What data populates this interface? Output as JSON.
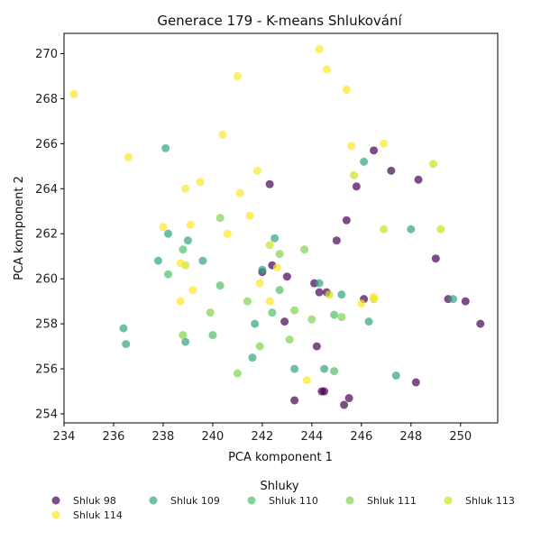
{
  "chart_data": {
    "type": "scatter",
    "title": "Generace 179 - K-means Shlukování",
    "xlabel": "PCA komponent 1",
    "ylabel": "PCA komponent 2",
    "xlim": [
      234,
      251.5
    ],
    "ylim": [
      253.6,
      270.9
    ],
    "xticks": [
      234,
      236,
      238,
      240,
      242,
      244,
      246,
      248,
      250
    ],
    "yticks": [
      254,
      256,
      258,
      260,
      262,
      264,
      266,
      268,
      270
    ],
    "grid": false,
    "legend_title": "Shluky",
    "legend_position": "bottom",
    "series": [
      {
        "name": "Shluk 98",
        "color": "#440154",
        "points": [
          [
            242.0,
            260.3
          ],
          [
            242.3,
            264.2
          ],
          [
            242.4,
            260.6
          ],
          [
            242.9,
            258.1
          ],
          [
            243.0,
            260.1
          ],
          [
            243.3,
            254.6
          ],
          [
            244.1,
            259.8
          ],
          [
            244.2,
            257.0
          ],
          [
            244.3,
            259.4
          ],
          [
            244.4,
            255.0
          ],
          [
            244.5,
            255.0
          ],
          [
            244.6,
            259.4
          ],
          [
            245.0,
            261.7
          ],
          [
            245.3,
            254.4
          ],
          [
            245.4,
            262.6
          ],
          [
            245.5,
            254.7
          ],
          [
            245.8,
            264.1
          ],
          [
            246.1,
            259.1
          ],
          [
            246.5,
            265.7
          ],
          [
            247.2,
            264.8
          ],
          [
            248.2,
            255.4
          ],
          [
            248.3,
            264.4
          ],
          [
            249.0,
            260.9
          ],
          [
            249.5,
            259.1
          ],
          [
            250.2,
            259.0
          ],
          [
            250.8,
            258.0
          ]
        ]
      },
      {
        "name": "Shluk 109",
        "color": "#31a385",
        "points": [
          [
            236.4,
            257.8
          ],
          [
            236.5,
            257.1
          ],
          [
            237.8,
            260.8
          ],
          [
            238.1,
            265.8
          ],
          [
            238.2,
            262.0
          ],
          [
            238.9,
            257.2
          ],
          [
            239.0,
            261.7
          ],
          [
            239.6,
            260.8
          ],
          [
            241.6,
            256.5
          ],
          [
            241.7,
            258.0
          ],
          [
            242.0,
            260.4
          ],
          [
            242.5,
            261.8
          ],
          [
            243.3,
            256.0
          ],
          [
            244.3,
            259.8
          ],
          [
            244.5,
            256.0
          ],
          [
            245.2,
            259.3
          ],
          [
            246.1,
            265.2
          ],
          [
            246.3,
            258.1
          ],
          [
            247.4,
            255.7
          ],
          [
            248.0,
            262.2
          ],
          [
            249.7,
            259.1
          ]
        ]
      },
      {
        "name": "Shluk 110",
        "color": "#4fc16a",
        "points": [
          [
            238.2,
            260.2
          ],
          [
            238.8,
            261.3
          ],
          [
            240.0,
            257.5
          ],
          [
            240.3,
            259.7
          ],
          [
            242.4,
            258.5
          ],
          [
            242.7,
            259.5
          ],
          [
            244.9,
            258.4
          ],
          [
            244.9,
            255.9
          ]
        ]
      },
      {
        "name": "Shluk 111",
        "color": "#7fd34e",
        "points": [
          [
            238.8,
            257.5
          ],
          [
            239.9,
            258.5
          ],
          [
            240.3,
            262.7
          ],
          [
            241.0,
            255.8
          ],
          [
            241.4,
            259.0
          ],
          [
            241.9,
            257.0
          ],
          [
            242.7,
            261.1
          ],
          [
            243.1,
            257.3
          ],
          [
            243.3,
            258.6
          ],
          [
            243.7,
            261.3
          ],
          [
            244.0,
            258.2
          ],
          [
            245.2,
            258.3
          ]
        ]
      },
      {
        "name": "Shluk 113",
        "color": "#cde11d",
        "points": [
          [
            238.9,
            260.6
          ],
          [
            242.3,
            261.5
          ],
          [
            244.7,
            259.3
          ],
          [
            245.7,
            264.6
          ],
          [
            246.5,
            259.1
          ],
          [
            246.9,
            262.2
          ],
          [
            248.9,
            265.1
          ],
          [
            249.2,
            262.2
          ]
        ]
      },
      {
        "name": "Shluk 114",
        "color": "#fde725",
        "points": [
          [
            234.4,
            268.2
          ],
          [
            236.6,
            265.4
          ],
          [
            238.0,
            262.3
          ],
          [
            238.7,
            260.7
          ],
          [
            238.7,
            259.0
          ],
          [
            238.9,
            264.0
          ],
          [
            239.1,
            262.4
          ],
          [
            239.2,
            259.5
          ],
          [
            239.5,
            264.3
          ],
          [
            240.4,
            266.4
          ],
          [
            240.6,
            262.0
          ],
          [
            241.0,
            269.0
          ],
          [
            241.1,
            263.8
          ],
          [
            241.5,
            262.8
          ],
          [
            241.8,
            264.8
          ],
          [
            241.9,
            259.8
          ],
          [
            242.3,
            259.0
          ],
          [
            242.6,
            260.5
          ],
          [
            243.8,
            255.5
          ],
          [
            244.3,
            270.2
          ],
          [
            244.6,
            269.3
          ],
          [
            245.4,
            268.4
          ],
          [
            245.6,
            265.9
          ],
          [
            246.0,
            258.9
          ],
          [
            246.5,
            259.2
          ],
          [
            246.9,
            266.0
          ]
        ]
      }
    ]
  }
}
